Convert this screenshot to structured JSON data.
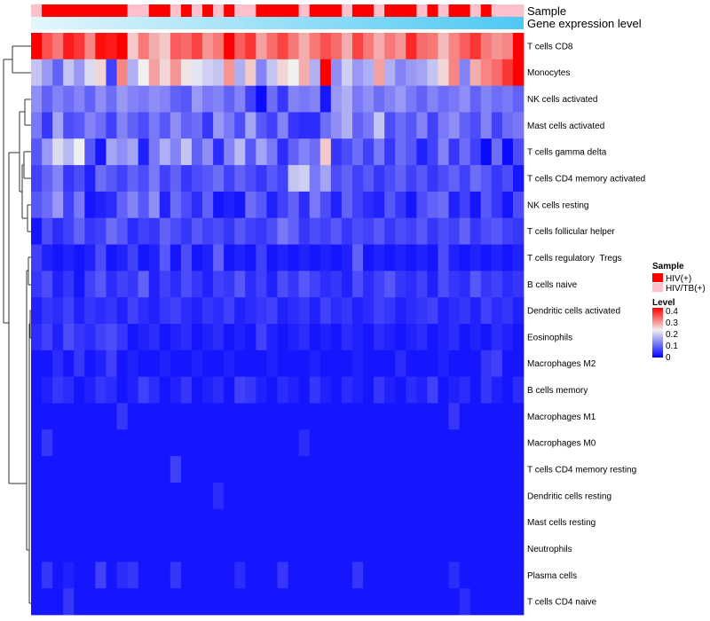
{
  "chart_data": {
    "type": "heatmap",
    "n_samples": 46,
    "annotations": {
      "sample_track_label": "Sample",
      "expression_track_label": "Gene expression level"
    },
    "sample_groups": [
      1,
      0,
      0,
      0,
      0,
      0,
      0,
      0,
      0,
      1,
      1,
      0,
      0,
      1,
      0,
      1,
      0,
      1,
      0,
      1,
      1,
      0,
      0,
      0,
      0,
      1,
      0,
      0,
      0,
      1,
      0,
      0,
      1,
      0,
      0,
      0,
      1,
      0,
      1,
      0,
      0,
      1,
      0,
      1,
      1,
      1
    ],
    "rows": [
      {
        "label": "T cells CD8",
        "values": [
          0.4,
          0.34,
          0.31,
          0.38,
          0.36,
          0.3,
          0.39,
          0.38,
          0.4,
          0.25,
          0.31,
          0.27,
          0.25,
          0.33,
          0.32,
          0.35,
          0.29,
          0.31,
          0.4,
          0.33,
          0.36,
          0.28,
          0.32,
          0.35,
          0.31,
          0.27,
          0.31,
          0.34,
          0.32,
          0.27,
          0.35,
          0.31,
          0.27,
          0.31,
          0.29,
          0.37,
          0.32,
          0.31,
          0.26,
          0.3,
          0.33,
          0.36,
          0.31,
          0.29,
          0.3,
          0.4
        ]
      },
      {
        "label": "Monocytes",
        "values": [
          0.18,
          0.14,
          0.09,
          0.18,
          0.14,
          0.2,
          0.24,
          0.06,
          0.3,
          0.16,
          0.22,
          0.28,
          0.24,
          0.29,
          0.23,
          0.21,
          0.19,
          0.18,
          0.29,
          0.16,
          0.25,
          0.12,
          0.18,
          0.24,
          0.22,
          0.27,
          0.16,
          0.4,
          0.13,
          0.19,
          0.14,
          0.16,
          0.28,
          0.16,
          0.12,
          0.14,
          0.15,
          0.18,
          0.24,
          0.3,
          0.12,
          0.27,
          0.3,
          0.32,
          0.36,
          0.4
        ]
      },
      {
        "label": "NK cells activated",
        "values": [
          0.13,
          0.09,
          0.12,
          0.1,
          0.12,
          0.09,
          0.13,
          0.1,
          0.14,
          0.12,
          0.11,
          0.13,
          0.12,
          0.09,
          0.08,
          0.14,
          0.11,
          0.12,
          0.09,
          0.12,
          0.06,
          0.01,
          0.1,
          0.05,
          0.12,
          0.11,
          0.12,
          0.02,
          0.14,
          0.16,
          0.11,
          0.13,
          0.1,
          0.12,
          0.14,
          0.11,
          0.09,
          0.12,
          0.1,
          0.11,
          0.13,
          0.09,
          0.12,
          0.1,
          0.11,
          0.09
        ]
      },
      {
        "label": "Mast cells activated",
        "values": [
          0.11,
          0.05,
          0.15,
          0.07,
          0.08,
          0.12,
          0.1,
          0.06,
          0.12,
          0.09,
          0.07,
          0.11,
          0.08,
          0.13,
          0.09,
          0.1,
          0.05,
          0.14,
          0.11,
          0.07,
          0.15,
          0.08,
          0.06,
          0.12,
          0.05,
          0.04,
          0.04,
          0.1,
          0.13,
          0.16,
          0.09,
          0.11,
          0.18,
          0.07,
          0.1,
          0.08,
          0.12,
          0.06,
          0.11,
          0.13,
          0.09,
          0.07,
          0.12,
          0.06,
          0.1,
          0.11
        ]
      },
      {
        "label": "T cells gamma delta",
        "values": [
          0.08,
          0.14,
          0.2,
          0.17,
          0.22,
          0.08,
          0.02,
          0.15,
          0.13,
          0.15,
          0.03,
          0.11,
          0.16,
          0.12,
          0.18,
          0.09,
          0.13,
          0.04,
          0.12,
          0.17,
          0.08,
          0.15,
          0.11,
          0.04,
          0.09,
          0.12,
          0.1,
          0.25,
          0.05,
          0.07,
          0.1,
          0.06,
          0.11,
          0.05,
          0.1,
          0.08,
          0.03,
          0.06,
          0.12,
          0.05,
          0.1,
          0.06,
          0.01,
          0.1,
          0.01,
          0.07
        ]
      },
      {
        "label": "T cells CD4 memory activated",
        "values": [
          0.06,
          0.09,
          0.12,
          0.05,
          0.07,
          0.03,
          0.1,
          0.08,
          0.06,
          0.09,
          0.07,
          0.11,
          0.06,
          0.09,
          0.05,
          0.07,
          0.08,
          0.1,
          0.06,
          0.09,
          0.07,
          0.05,
          0.08,
          0.06,
          0.18,
          0.19,
          0.11,
          0.15,
          0.07,
          0.09,
          0.06,
          0.08,
          0.05,
          0.07,
          0.09,
          0.06,
          0.08,
          0.05,
          0.07,
          0.09,
          0.06,
          0.1,
          0.08,
          0.05,
          0.07,
          0.02
        ]
      },
      {
        "label": "NK cells resting",
        "values": [
          0.08,
          0.1,
          0.14,
          0.06,
          0.11,
          0.02,
          0.03,
          0.04,
          0.09,
          0.12,
          0.08,
          0.13,
          0.03,
          0.1,
          0.07,
          0.04,
          0.09,
          0.02,
          0.03,
          0.02,
          0.1,
          0.08,
          0.03,
          0.06,
          0.09,
          0.04,
          0.11,
          0.07,
          0.03,
          0.09,
          0.06,
          0.04,
          0.03,
          0.08,
          0.05,
          0.02,
          0.07,
          0.09,
          0.1,
          0.03,
          0.06,
          0.02,
          0.08,
          0.05,
          0.02,
          0.07
        ]
      },
      {
        "label": "T cells follicular helper",
        "values": [
          0.02,
          0.07,
          0.04,
          0.06,
          0.09,
          0.05,
          0.06,
          0.1,
          0.08,
          0.04,
          0.06,
          0.05,
          0.09,
          0.07,
          0.05,
          0.08,
          0.06,
          0.07,
          0.05,
          0.08,
          0.06,
          0.05,
          0.07,
          0.11,
          0.09,
          0.05,
          0.07,
          0.06,
          0.08,
          0.05,
          0.07,
          0.06,
          0.08,
          0.05,
          0.07,
          0.06,
          0.08,
          0.05,
          0.07,
          0.06,
          0.09,
          0.05,
          0.07,
          0.08,
          0.06,
          0.05
        ]
      },
      {
        "label": "T cells regulatory  Tregs",
        "values": [
          0.06,
          0.03,
          0.02,
          0.03,
          0.02,
          0.03,
          0.07,
          0.02,
          0.03,
          0.06,
          0.02,
          0.03,
          0.08,
          0.02,
          0.07,
          0.02,
          0.03,
          0.09,
          0.02,
          0.03,
          0.02,
          0.06,
          0.02,
          0.03,
          0.02,
          0.03,
          0.02,
          0.03,
          0.02,
          0.03,
          0.09,
          0.02,
          0.03,
          0.02,
          0.03,
          0.02,
          0.03,
          0.02,
          0.07,
          0.03,
          0.02,
          0.03,
          0.02,
          0.03,
          0.02,
          0.03
        ]
      },
      {
        "label": "B cells naive",
        "values": [
          0.05,
          0.07,
          0.03,
          0.05,
          0.02,
          0.06,
          0.08,
          0.04,
          0.06,
          0.05,
          0.09,
          0.03,
          0.06,
          0.04,
          0.07,
          0.05,
          0.03,
          0.06,
          0.05,
          0.08,
          0.04,
          0.06,
          0.03,
          0.07,
          0.05,
          0.08,
          0.06,
          0.04,
          0.05,
          0.03,
          0.07,
          0.04,
          0.06,
          0.08,
          0.05,
          0.04,
          0.06,
          0.03,
          0.07,
          0.05,
          0.04,
          0.08,
          0.05,
          0.06,
          0.04,
          0.05
        ]
      },
      {
        "label": "Dendritic cells activated",
        "values": [
          0.03,
          0.05,
          0.04,
          0.06,
          0.03,
          0.05,
          0.04,
          0.05,
          0.03,
          0.06,
          0.04,
          0.03,
          0.05,
          0.06,
          0.04,
          0.03,
          0.05,
          0.04,
          0.06,
          0.03,
          0.04,
          0.05,
          0.06,
          0.03,
          0.04,
          0.05,
          0.03,
          0.06,
          0.04,
          0.05,
          0.03,
          0.04,
          0.06,
          0.05,
          0.03,
          0.04,
          0.05,
          0.06,
          0.03,
          0.04,
          0.05,
          0.03,
          0.06,
          0.04,
          0.05,
          0.03
        ]
      },
      {
        "label": "Eosinophils",
        "values": [
          0.04,
          0.06,
          0.03,
          0.07,
          0.05,
          0.04,
          0.06,
          0.07,
          0.05,
          0.02,
          0.03,
          0.04,
          0.02,
          0.03,
          0.04,
          0.02,
          0.03,
          0.04,
          0.02,
          0.03,
          0.02,
          0.06,
          0.03,
          0.02,
          0.03,
          0.04,
          0.02,
          0.03,
          0.02,
          0.04,
          0.03,
          0.02,
          0.04,
          0.03,
          0.02,
          0.03,
          0.04,
          0.02,
          0.03,
          0.04,
          0.02,
          0.03,
          0.02,
          0.04,
          0.03,
          0.02
        ]
      },
      {
        "label": "Macrophages M2",
        "values": [
          0.02,
          0.02,
          0.04,
          0.02,
          0.05,
          0.02,
          0.03,
          0.06,
          0.02,
          0.03,
          0.02,
          0.02,
          0.03,
          0.02,
          0.02,
          0.03,
          0.02,
          0.02,
          0.03,
          0.02,
          0.02,
          0.02,
          0.03,
          0.02,
          0.02,
          0.02,
          0.03,
          0.02,
          0.02,
          0.02,
          0.03,
          0.02,
          0.02,
          0.02,
          0.04,
          0.02,
          0.02,
          0.02,
          0.03,
          0.02,
          0.02,
          0.02,
          0.05,
          0.06,
          0.02,
          0.02
        ]
      },
      {
        "label": "B cells memory",
        "values": [
          0.02,
          0.03,
          0.05,
          0.04,
          0.02,
          0.03,
          0.05,
          0.04,
          0.02,
          0.03,
          0.06,
          0.04,
          0.02,
          0.03,
          0.05,
          0.02,
          0.03,
          0.04,
          0.02,
          0.06,
          0.05,
          0.03,
          0.02,
          0.04,
          0.03,
          0.02,
          0.05,
          0.03,
          0.02,
          0.04,
          0.03,
          0.02,
          0.05,
          0.03,
          0.02,
          0.04,
          0.03,
          0.06,
          0.02,
          0.03,
          0.04,
          0.02,
          0.05,
          0.03,
          0.02,
          0.04
        ]
      },
      {
        "label": "Macrophages M1",
        "values": [
          0.02,
          0.02,
          0.02,
          0.02,
          0.02,
          0.02,
          0.02,
          0.02,
          0.05,
          0.02,
          0.02,
          0.02,
          0.02,
          0.02,
          0.02,
          0.02,
          0.02,
          0.02,
          0.02,
          0.02,
          0.02,
          0.02,
          0.02,
          0.02,
          0.02,
          0.02,
          0.02,
          0.02,
          0.02,
          0.02,
          0.02,
          0.02,
          0.02,
          0.02,
          0.02,
          0.02,
          0.02,
          0.02,
          0.02,
          0.05,
          0.02,
          0.02,
          0.02,
          0.02,
          0.02,
          0.02
        ]
      },
      {
        "label": "Macrophages M0",
        "values": [
          0.02,
          0.05,
          0.02,
          0.02,
          0.02,
          0.02,
          0.02,
          0.02,
          0.02,
          0.02,
          0.02,
          0.02,
          0.02,
          0.02,
          0.02,
          0.02,
          0.02,
          0.02,
          0.02,
          0.02,
          0.02,
          0.02,
          0.02,
          0.02,
          0.02,
          0.04,
          0.02,
          0.02,
          0.02,
          0.02,
          0.02,
          0.02,
          0.02,
          0.02,
          0.02,
          0.02,
          0.02,
          0.02,
          0.02,
          0.02,
          0.02,
          0.02,
          0.02,
          0.02,
          0.02,
          0.02
        ]
      },
      {
        "label": "T cells CD4 memory resting",
        "values": [
          0.02,
          0.02,
          0.02,
          0.02,
          0.02,
          0.02,
          0.02,
          0.02,
          0.02,
          0.02,
          0.02,
          0.02,
          0.02,
          0.06,
          0.02,
          0.02,
          0.02,
          0.02,
          0.02,
          0.02,
          0.02,
          0.02,
          0.02,
          0.02,
          0.02,
          0.02,
          0.02,
          0.02,
          0.02,
          0.02,
          0.02,
          0.02,
          0.02,
          0.02,
          0.02,
          0.02,
          0.02,
          0.02,
          0.02,
          0.02,
          0.02,
          0.02,
          0.02,
          0.02,
          0.02,
          0.02
        ]
      },
      {
        "label": "Dendritic cells resting",
        "values": [
          0.02,
          0.02,
          0.02,
          0.02,
          0.02,
          0.02,
          0.02,
          0.02,
          0.02,
          0.02,
          0.02,
          0.02,
          0.02,
          0.02,
          0.02,
          0.02,
          0.02,
          0.04,
          0.02,
          0.02,
          0.02,
          0.02,
          0.02,
          0.02,
          0.02,
          0.02,
          0.02,
          0.02,
          0.02,
          0.02,
          0.02,
          0.02,
          0.02,
          0.02,
          0.02,
          0.02,
          0.02,
          0.02,
          0.02,
          0.02,
          0.02,
          0.02,
          0.02,
          0.02,
          0.02,
          0.02
        ]
      },
      {
        "label": "Mast cells resting",
        "values": [
          0.02,
          0.02,
          0.02,
          0.02,
          0.02,
          0.02,
          0.02,
          0.02,
          0.02,
          0.02,
          0.02,
          0.02,
          0.02,
          0.02,
          0.02,
          0.02,
          0.02,
          0.02,
          0.02,
          0.02,
          0.02,
          0.02,
          0.02,
          0.02,
          0.02,
          0.02,
          0.02,
          0.02,
          0.02,
          0.02,
          0.02,
          0.02,
          0.02,
          0.02,
          0.02,
          0.02,
          0.02,
          0.02,
          0.02,
          0.02,
          0.02,
          0.02,
          0.02,
          0.02,
          0.02,
          0.02
        ]
      },
      {
        "label": "Neutrophils",
        "values": [
          0.02,
          0.02,
          0.02,
          0.02,
          0.02,
          0.02,
          0.02,
          0.02,
          0.02,
          0.02,
          0.02,
          0.02,
          0.02,
          0.02,
          0.02,
          0.02,
          0.02,
          0.02,
          0.02,
          0.02,
          0.02,
          0.02,
          0.02,
          0.02,
          0.02,
          0.02,
          0.02,
          0.02,
          0.02,
          0.02,
          0.02,
          0.02,
          0.02,
          0.02,
          0.02,
          0.02,
          0.02,
          0.02,
          0.02,
          0.02,
          0.02,
          0.02,
          0.02,
          0.02,
          0.02,
          0.02
        ]
      },
      {
        "label": "Plasma cells",
        "values": [
          0.02,
          0.05,
          0.02,
          0.03,
          0.02,
          0.02,
          0.06,
          0.02,
          0.04,
          0.05,
          0.02,
          0.02,
          0.02,
          0.05,
          0.02,
          0.02,
          0.02,
          0.02,
          0.02,
          0.04,
          0.02,
          0.02,
          0.02,
          0.05,
          0.02,
          0.02,
          0.02,
          0.02,
          0.02,
          0.02,
          0.05,
          0.02,
          0.02,
          0.02,
          0.02,
          0.02,
          0.02,
          0.02,
          0.02,
          0.04,
          0.02,
          0.02,
          0.02,
          0.02,
          0.02,
          0.02
        ]
      },
      {
        "label": "T cells CD4 naive",
        "values": [
          0.02,
          0.02,
          0.02,
          0.05,
          0.02,
          0.02,
          0.02,
          0.02,
          0.02,
          0.02,
          0.02,
          0.02,
          0.02,
          0.02,
          0.02,
          0.02,
          0.02,
          0.02,
          0.02,
          0.02,
          0.02,
          0.02,
          0.02,
          0.02,
          0.02,
          0.02,
          0.02,
          0.02,
          0.02,
          0.02,
          0.02,
          0.02,
          0.02,
          0.02,
          0.02,
          0.02,
          0.02,
          0.02,
          0.02,
          0.02,
          0.04,
          0.02,
          0.02,
          0.02,
          0.02,
          0.02
        ]
      }
    ],
    "legend": {
      "sample_title": "Sample",
      "sample_items": [
        {
          "label": "HIV(+)",
          "color": "#ff0000"
        },
        {
          "label": "HIV/TB(+)",
          "color": "#ffc0cb"
        }
      ],
      "level_title": "Level",
      "level_ticks": [
        "0.4",
        "0.3",
        "0.2",
        "0.1",
        "0"
      ],
      "level_range": [
        0,
        0.4
      ]
    },
    "colors": {
      "low": "#0000ff",
      "mid": "#f0f0f0",
      "high": "#ff0000",
      "mid_value": 0.22,
      "expression_start": "#e4f6fc",
      "expression_end": "#4ec9f3"
    }
  }
}
